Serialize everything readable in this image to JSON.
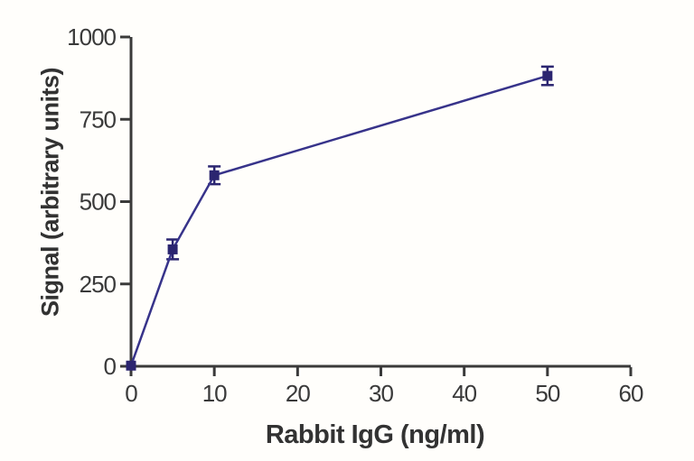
{
  "figure": {
    "background": "#fffefb",
    "axis_color": "#3a3a3a",
    "text_color": "#323232",
    "line_color": "#37338a",
    "marker_color": "#2b2570"
  },
  "chart_data": {
    "type": "line",
    "title": "",
    "xlabel": "Rabbit IgG (ng/ml)",
    "ylabel": "Signal (arbitrary units)",
    "x": [
      0,
      5,
      10,
      50
    ],
    "y": [
      2,
      355,
      580,
      882
    ],
    "y_error": [
      0,
      30,
      27,
      28
    ],
    "xlim": [
      0,
      60
    ],
    "ylim": [
      0,
      1000
    ],
    "x_ticks": [
      0,
      10,
      20,
      30,
      40,
      50,
      60
    ],
    "y_ticks": [
      0,
      250,
      500,
      750,
      1000
    ],
    "grid": false,
    "legend": "none",
    "marker": "square"
  }
}
